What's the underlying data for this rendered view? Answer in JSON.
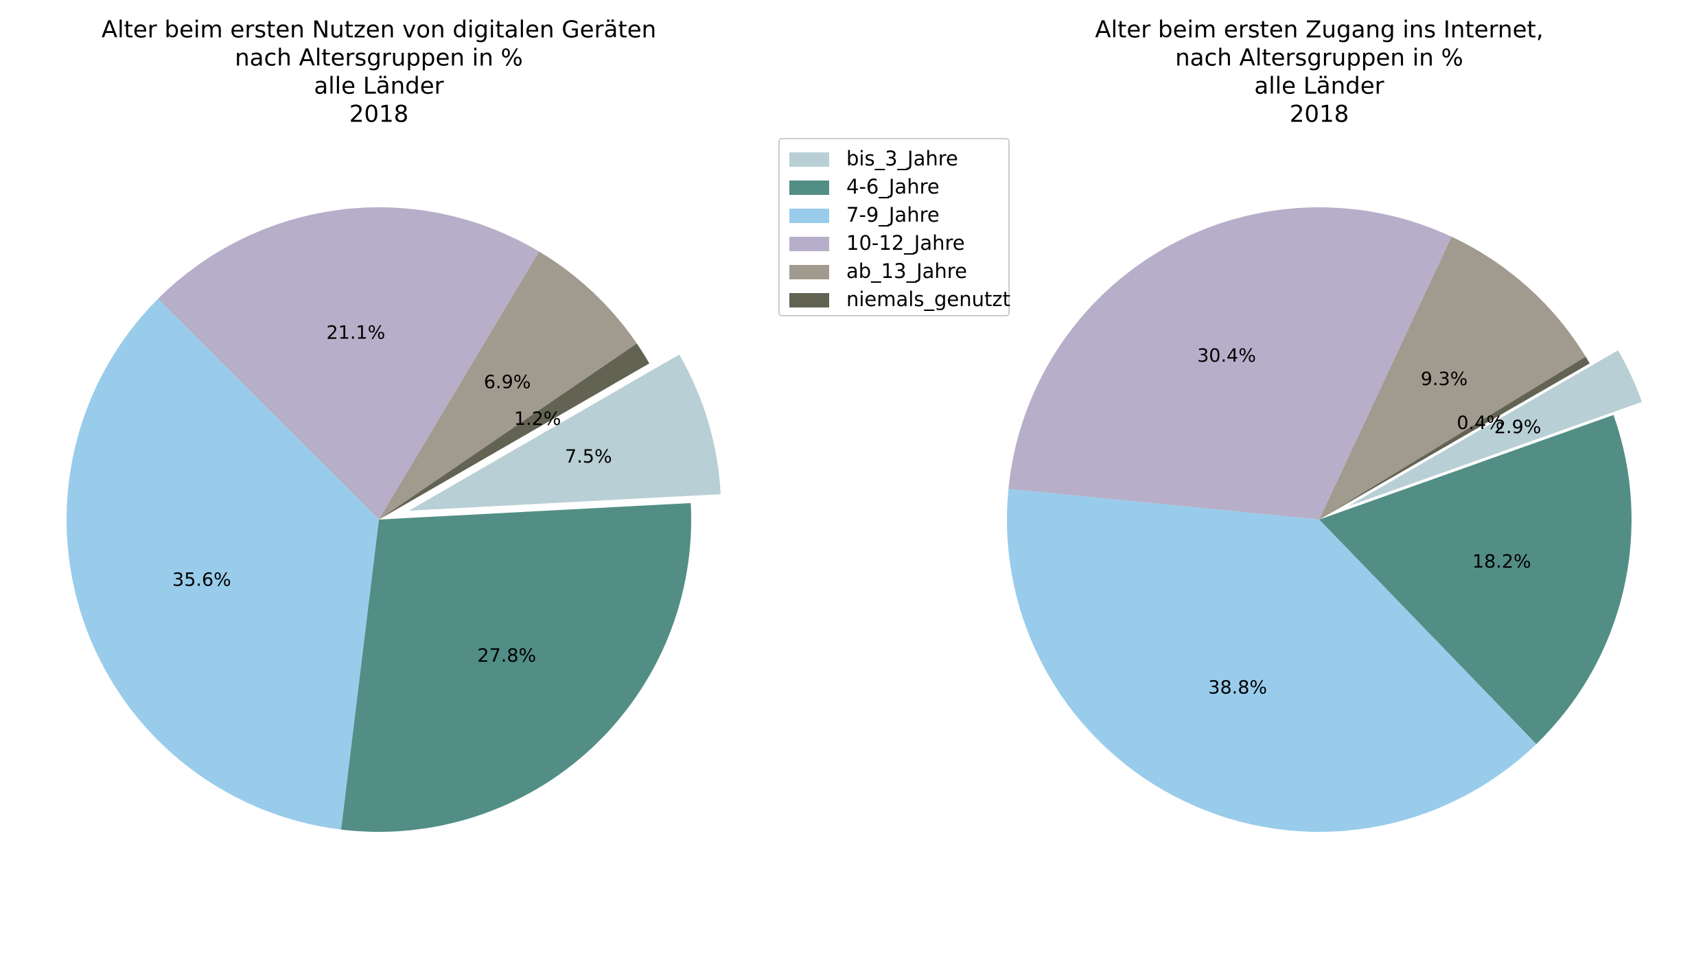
{
  "legend": {
    "items": [
      {
        "label": "bis_3_Jahre",
        "color": "#b8cfd5"
      },
      {
        "label": "4-6_Jahre",
        "color": "#528e85"
      },
      {
        "label": "7-9_Jahre",
        "color": "#99cceb"
      },
      {
        "label": "10-12_Jahre",
        "color": "#b7afc9"
      },
      {
        "label": "ab_13_Jahre",
        "color": "#a19a8e"
      },
      {
        "label": "niemals_genutzt",
        "color": "#636353"
      }
    ]
  },
  "chart_data": [
    {
      "type": "pie",
      "title": "Alter beim ersten Nutzen von digitalen Geräten\nnach Altersgruppen in %\nalle Länder\n2018",
      "title_lines": [
        "Alter beim ersten Nutzen von digitalen Geräten",
        "nach Altersgruppen in %",
        "alle Länder",
        "2018"
      ],
      "categories": [
        "bis_3_Jahre",
        "4-6_Jahre",
        "7-9_Jahre",
        "10-12_Jahre",
        "ab_13_Jahre",
        "niemals_genutzt"
      ],
      "values": [
        7.5,
        27.8,
        35.6,
        21.1,
        6.9,
        1.2
      ],
      "labels": [
        "7.5%",
        "27.8%",
        "35.6%",
        "21.1%",
        "6.9%",
        "1.2%"
      ],
      "exploded": [
        "bis_3_Jahre"
      ],
      "start_angle": 30,
      "direction": "clockwise",
      "legend": "between charts, upper"
    },
    {
      "type": "pie",
      "title": "Alter beim ersten Zugang ins Internet,\nnach Altersgruppen in %\nalle Länder\n2018",
      "title_lines": [
        "Alter beim ersten Zugang ins Internet,",
        "nach Altersgruppen in %",
        "alle Länder",
        "2018"
      ],
      "categories": [
        "bis_3_Jahre",
        "4-6_Jahre",
        "7-9_Jahre",
        "10-12_Jahre",
        "ab_13_Jahre",
        "niemals_genutzt"
      ],
      "values": [
        2.9,
        18.2,
        38.8,
        30.4,
        9.3,
        0.4
      ],
      "labels": [
        "2.9%",
        "18.2%",
        "38.8%",
        "30.4%",
        "9.3%",
        "0.4%"
      ],
      "exploded": [
        "bis_3_Jahre"
      ],
      "start_angle": 30,
      "direction": "clockwise",
      "legend": "between charts, upper"
    }
  ]
}
